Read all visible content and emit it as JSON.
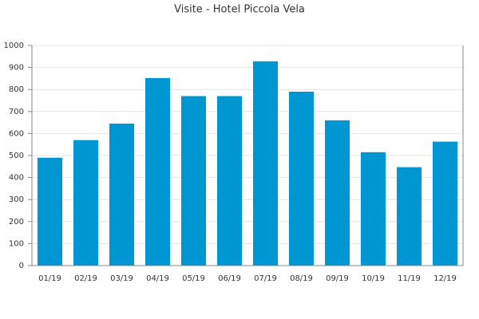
{
  "chart_data": {
    "type": "bar",
    "title": "Visite - Hotel Piccola Vela",
    "categories": [
      "01/19",
      "02/19",
      "03/19",
      "04/19",
      "05/19",
      "06/19",
      "07/19",
      "08/19",
      "09/19",
      "10/19",
      "11/19",
      "12/19"
    ],
    "values": [
      490,
      570,
      645,
      852,
      770,
      770,
      928,
      790,
      660,
      515,
      447,
      563
    ],
    "color": "#0096d2",
    "ylim": [
      0,
      1000
    ],
    "yticks": [
      0,
      100,
      200,
      300,
      400,
      500,
      600,
      700,
      800,
      900,
      1000
    ],
    "grid": true
  }
}
